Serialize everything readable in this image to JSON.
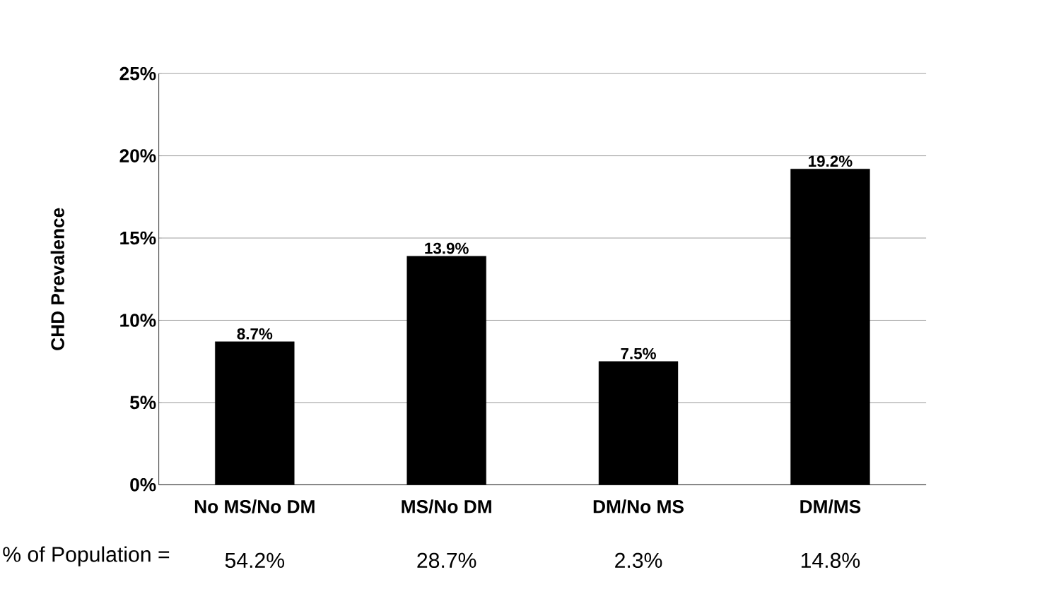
{
  "chart_data": {
    "type": "bar",
    "ylabel": "CHD Prevalence",
    "categories": [
      "No MS/No DM",
      "MS/No DM",
      "DM/No MS",
      "DM/MS"
    ],
    "values": [
      8.7,
      13.9,
      7.5,
      19.2
    ],
    "color": "#000000",
    "value_labels": [
      "8.7%",
      "13.9%",
      "7.5%",
      "19.2%"
    ],
    "ylim": [
      0,
      25
    ],
    "yticks": [
      {
        "value": 0,
        "label": "0%"
      },
      {
        "value": 5,
        "label": "5%"
      },
      {
        "value": 10,
        "label": "10%"
      },
      {
        "value": 15,
        "label": "15%"
      },
      {
        "value": 20,
        "label": "20%"
      },
      {
        "value": 25,
        "label": "25%"
      }
    ],
    "grid": "y",
    "annotations": [
      "% of Population =",
      "54.2%",
      "28.7%",
      "2.3%",
      "14.8%"
    ]
  }
}
